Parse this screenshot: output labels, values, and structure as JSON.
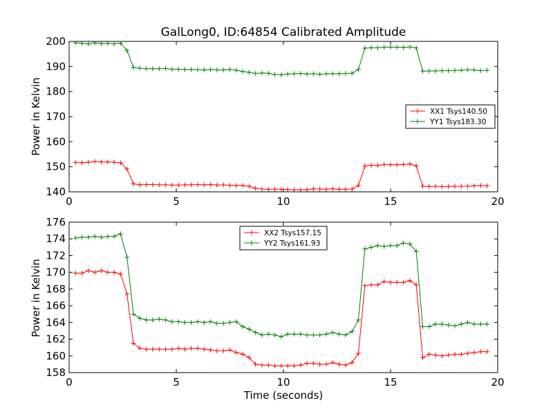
{
  "colors": {
    "xx": "#ff0000",
    "yy": "#008000",
    "axis": "#000000",
    "background": "#ffffff"
  },
  "chart_data": [
    {
      "type": "line",
      "title": "GalLong0, ID:64854 Calibrated Amplitude",
      "xlabel": "",
      "ylabel": "Power in Kelvin",
      "xlim": [
        0,
        20
      ],
      "ylim": [
        140,
        200
      ],
      "xticks": [
        0,
        5,
        10,
        15,
        20
      ],
      "yticks": [
        140,
        150,
        160,
        170,
        180,
        190,
        200
      ],
      "legend_position": "center-right",
      "x": [
        0.3,
        0.6,
        0.9,
        1.2,
        1.5,
        1.8,
        2.1,
        2.4,
        2.7,
        3.0,
        3.3,
        3.6,
        3.9,
        4.2,
        4.5,
        4.8,
        5.1,
        5.4,
        5.7,
        6.0,
        6.3,
        6.6,
        6.9,
        7.2,
        7.5,
        7.8,
        8.1,
        8.4,
        8.7,
        9.0,
        9.3,
        9.6,
        9.9,
        10.2,
        10.5,
        10.8,
        11.1,
        11.4,
        11.7,
        12.0,
        12.3,
        12.6,
        12.9,
        13.2,
        13.5,
        13.8,
        14.1,
        14.4,
        14.7,
        15.0,
        15.3,
        15.6,
        15.9,
        16.2,
        16.5,
        16.8,
        17.1,
        17.4,
        17.7,
        18.0,
        18.3,
        18.6,
        18.9,
        19.2,
        19.5
      ],
      "series": [
        {
          "name": "XX1 Tsys140.50",
          "color": "#ff0000",
          "values": [
            151.7,
            151.6,
            151.8,
            152.1,
            151.9,
            151.9,
            151.8,
            151.6,
            149.1,
            143.2,
            142.8,
            142.9,
            142.9,
            142.8,
            142.8,
            142.7,
            142.7,
            142.8,
            142.8,
            142.9,
            142.8,
            142.9,
            142.7,
            142.8,
            142.6,
            142.5,
            142.5,
            142.2,
            141.4,
            141.1,
            141.0,
            141.1,
            141.0,
            140.9,
            140.8,
            140.8,
            140.8,
            141.2,
            141.1,
            141.0,
            141.2,
            141.0,
            141.0,
            141.1,
            142.5,
            150.3,
            150.6,
            150.5,
            150.9,
            150.8,
            150.8,
            150.9,
            151.1,
            150.3,
            142.2,
            142.1,
            142.2,
            142.1,
            142.1,
            142.2,
            142.2,
            142.2,
            142.4,
            142.5,
            142.4
          ]
        },
        {
          "name": "YY1 Tsys183.30",
          "color": "#008000",
          "values": [
            199.4,
            199.2,
            199.0,
            199.4,
            199.1,
            199.2,
            199.0,
            199.3,
            196.4,
            189.6,
            189.3,
            189.1,
            189.1,
            189.1,
            189.2,
            188.9,
            188.9,
            188.8,
            188.8,
            188.7,
            188.6,
            188.8,
            188.6,
            188.6,
            188.8,
            188.5,
            188.0,
            187.7,
            187.2,
            187.4,
            187.3,
            186.8,
            186.7,
            187.0,
            187.1,
            187.2,
            187.0,
            187.1,
            186.9,
            187.1,
            187.1,
            187.1,
            187.2,
            187.3,
            188.8,
            197.3,
            197.5,
            197.5,
            197.7,
            197.7,
            197.7,
            197.6,
            197.8,
            197.4,
            188.1,
            188.2,
            188.2,
            188.3,
            188.3,
            188.4,
            188.5,
            188.7,
            188.6,
            188.3,
            188.5
          ]
        }
      ]
    },
    {
      "type": "line",
      "title": "",
      "xlabel": "Time (seconds)",
      "ylabel": "Power in Kelvin",
      "xlim": [
        0,
        20
      ],
      "ylim": [
        158,
        176
      ],
      "xticks": [
        0,
        5,
        10,
        15,
        20
      ],
      "yticks": [
        158,
        160,
        162,
        164,
        166,
        168,
        170,
        172,
        174,
        176
      ],
      "legend_position": "upper-center",
      "x": [
        0.3,
        0.6,
        0.9,
        1.2,
        1.5,
        1.8,
        2.1,
        2.4,
        2.7,
        3.0,
        3.3,
        3.6,
        3.9,
        4.2,
        4.5,
        4.8,
        5.1,
        5.4,
        5.7,
        6.0,
        6.3,
        6.6,
        6.9,
        7.2,
        7.5,
        7.8,
        8.1,
        8.4,
        8.7,
        9.0,
        9.3,
        9.6,
        9.9,
        10.2,
        10.5,
        10.8,
        11.1,
        11.4,
        11.7,
        12.0,
        12.3,
        12.6,
        12.9,
        13.2,
        13.5,
        13.8,
        14.1,
        14.4,
        14.7,
        15.0,
        15.3,
        15.6,
        15.9,
        16.2,
        16.5,
        16.8,
        17.1,
        17.4,
        17.7,
        18.0,
        18.3,
        18.6,
        18.9,
        19.2,
        19.5
      ],
      "series": [
        {
          "name": "XX2 Tsys157.15",
          "color": "#ff0000",
          "values": [
            169.9,
            169.9,
            170.2,
            170.0,
            170.2,
            170.0,
            170.0,
            169.8,
            167.4,
            161.5,
            160.9,
            160.8,
            160.8,
            160.8,
            160.8,
            160.8,
            160.9,
            160.8,
            160.9,
            160.9,
            160.8,
            160.7,
            160.6,
            160.6,
            160.7,
            160.4,
            160.2,
            159.8,
            159.0,
            158.9,
            158.9,
            158.8,
            158.8,
            158.8,
            158.8,
            158.9,
            159.1,
            159.1,
            159.0,
            159.0,
            159.2,
            159.0,
            158.9,
            159.2,
            160.3,
            168.4,
            168.5,
            168.5,
            168.9,
            168.8,
            168.8,
            168.8,
            169.0,
            168.5,
            159.8,
            160.2,
            160.1,
            160.0,
            160.1,
            160.2,
            160.2,
            160.3,
            160.4,
            160.5,
            160.5
          ]
        },
        {
          "name": "YY2 Tsys161.93",
          "color": "#008000",
          "values": [
            174.1,
            174.2,
            174.2,
            174.3,
            174.2,
            174.3,
            174.3,
            174.6,
            171.8,
            165.0,
            164.5,
            164.3,
            164.3,
            164.4,
            164.3,
            164.1,
            164.1,
            164.0,
            164.0,
            164.1,
            164.0,
            164.1,
            163.9,
            163.9,
            164.0,
            164.1,
            163.5,
            163.2,
            162.8,
            162.5,
            162.6,
            162.5,
            162.3,
            162.6,
            162.6,
            162.6,
            162.5,
            162.5,
            162.5,
            162.6,
            162.8,
            162.6,
            162.5,
            162.9,
            164.3,
            172.8,
            173.0,
            173.2,
            173.1,
            173.2,
            173.2,
            173.5,
            173.4,
            172.5,
            163.5,
            163.5,
            163.8,
            163.8,
            163.7,
            163.6,
            163.8,
            164.0,
            163.8,
            163.8,
            163.8
          ]
        }
      ]
    }
  ]
}
